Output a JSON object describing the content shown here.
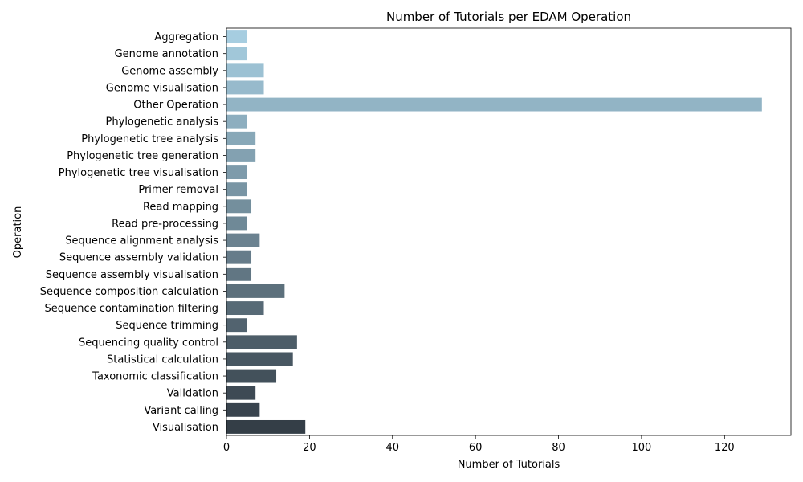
{
  "chart_data": {
    "type": "bar",
    "orientation": "horizontal",
    "title": "Number of Tutorials per EDAM Operation",
    "xlabel": "Number of Tutorials",
    "ylabel": "Operation",
    "xlim": [
      0,
      136
    ],
    "xticks": [
      0,
      20,
      40,
      60,
      80,
      100,
      120
    ],
    "grid": false,
    "palette": "Blues_d (light blue to dark slate)",
    "colors": {
      "start": "#a6cde0",
      "end": "#343e47"
    },
    "categories": [
      "Aggregation",
      "Genome annotation",
      "Genome assembly",
      "Genome visualisation",
      "Other Operation",
      "Phylogenetic analysis",
      "Phylogenetic tree analysis",
      "Phylogenetic tree generation",
      "Phylogenetic tree visualisation",
      "Primer removal",
      "Read mapping",
      "Read pre-processing",
      "Sequence alignment analysis",
      "Sequence assembly validation",
      "Sequence assembly visualisation",
      "Sequence composition calculation",
      "Sequence contamination filtering",
      "Sequence trimming",
      "Sequencing quality control",
      "Statistical calculation",
      "Taxonomic classification",
      "Validation",
      "Variant calling",
      "Visualisation"
    ],
    "values": [
      5,
      5,
      9,
      9,
      129,
      5,
      7,
      7,
      5,
      5,
      6,
      5,
      8,
      6,
      6,
      14,
      9,
      5,
      17,
      16,
      12,
      7,
      8,
      19
    ]
  }
}
